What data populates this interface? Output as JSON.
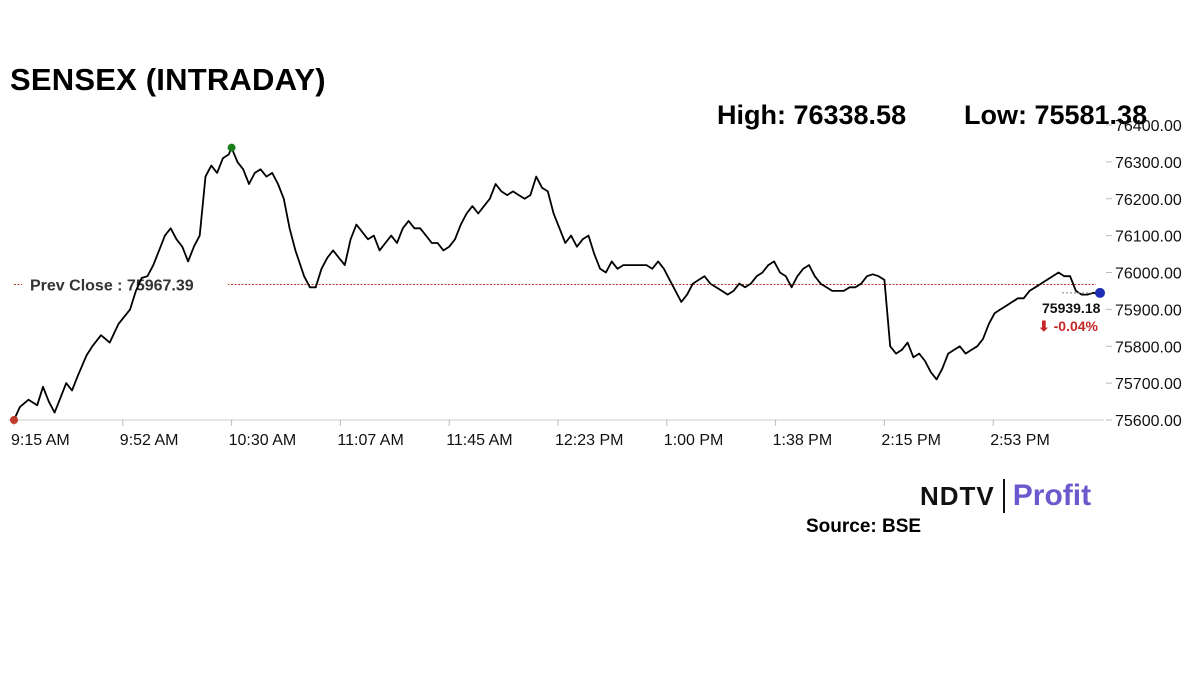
{
  "title": "SENSEX (INTRADAY)",
  "high_label": "High: 76338.58",
  "low_label": "Low: 75581.38",
  "source_label": "Source: BSE",
  "logo": {
    "ndtv": "NDTV",
    "profit": "Profit"
  },
  "colors": {
    "line": "#000000",
    "prev_close_line": "#c0392b",
    "high_marker": "#1b7f1b",
    "low_marker": "#c0392b",
    "last_marker": "#1f2fb5",
    "negative": "#c62828",
    "profit_brand": "#6a5acd"
  },
  "chart_data": {
    "type": "line",
    "title": "SENSEX (INTRADAY)",
    "xlabel": "",
    "ylabel": "",
    "x_tick_labels": [
      "9:15 AM",
      "9:52 AM",
      "10:30 AM",
      "11:07 AM",
      "11:45 AM",
      "12:23 PM",
      "1:00 PM",
      "1:38 PM",
      "2:15 PM",
      "2:53 PM"
    ],
    "y_tick_labels": [
      "76400.00",
      "76300.00",
      "76200.00",
      "76100.00",
      "76000.00",
      "75900.00",
      "75800.00",
      "75700.00",
      "75600.00"
    ],
    "y_ticks": [
      76400,
      76300,
      76200,
      76100,
      76000,
      75900,
      75800,
      75700,
      75600
    ],
    "ylim": [
      75600,
      76400
    ],
    "x_unit": "minutes after 9:15 AM",
    "xlim": [
      0,
      375
    ],
    "grid": false,
    "prev_close": 75967.39,
    "prev_close_label": "Prev Close : 75967.39",
    "last_value": 75939.18,
    "last_value_label": "75939.18",
    "change_label": "⬇ -0.04%",
    "high": {
      "x": 75,
      "y": 76338.58
    },
    "low_marker": {
      "x": 0,
      "y": 75600
    },
    "series": [
      {
        "name": "",
        "points": [
          [
            0,
            75600
          ],
          [
            2,
            75635
          ],
          [
            5,
            75655
          ],
          [
            8,
            75640
          ],
          [
            10,
            75690
          ],
          [
            12,
            75650
          ],
          [
            14,
            75620
          ],
          [
            16,
            75660
          ],
          [
            18,
            75700
          ],
          [
            20,
            75680
          ],
          [
            22,
            75720
          ],
          [
            25,
            75775
          ],
          [
            27,
            75800
          ],
          [
            30,
            75830
          ],
          [
            33,
            75810
          ],
          [
            36,
            75860
          ],
          [
            40,
            75900
          ],
          [
            42,
            75950
          ],
          [
            44,
            75985
          ],
          [
            46,
            75990
          ],
          [
            48,
            76020
          ],
          [
            50,
            76060
          ],
          [
            52,
            76100
          ],
          [
            54,
            76120
          ],
          [
            56,
            76090
          ],
          [
            58,
            76070
          ],
          [
            60,
            76030
          ],
          [
            62,
            76070
          ],
          [
            64,
            76100
          ],
          [
            66,
            76260
          ],
          [
            68,
            76290
          ],
          [
            70,
            76270
          ],
          [
            72,
            76310
          ],
          [
            74,
            76320
          ],
          [
            75,
            76338
          ],
          [
            77,
            76300
          ],
          [
            79,
            76280
          ],
          [
            81,
            76240
          ],
          [
            83,
            76270
          ],
          [
            85,
            76280
          ],
          [
            87,
            76260
          ],
          [
            89,
            76270
          ],
          [
            91,
            76240
          ],
          [
            93,
            76200
          ],
          [
            95,
            76120
          ],
          [
            97,
            76060
          ],
          [
            100,
            75990
          ],
          [
            102,
            75960
          ],
          [
            104,
            75960
          ],
          [
            106,
            76010
          ],
          [
            108,
            76040
          ],
          [
            110,
            76060
          ],
          [
            112,
            76040
          ],
          [
            114,
            76020
          ],
          [
            116,
            76090
          ],
          [
            118,
            76130
          ],
          [
            120,
            76110
          ],
          [
            122,
            76090
          ],
          [
            124,
            76100
          ],
          [
            126,
            76060
          ],
          [
            128,
            76080
          ],
          [
            130,
            76100
          ],
          [
            132,
            76080
          ],
          [
            134,
            76120
          ],
          [
            136,
            76140
          ],
          [
            138,
            76120
          ],
          [
            140,
            76120
          ],
          [
            142,
            76100
          ],
          [
            144,
            76080
          ],
          [
            146,
            76080
          ],
          [
            148,
            76060
          ],
          [
            150,
            76070
          ],
          [
            152,
            76090
          ],
          [
            154,
            76130
          ],
          [
            156,
            76160
          ],
          [
            158,
            76180
          ],
          [
            160,
            76160
          ],
          [
            162,
            76180
          ],
          [
            164,
            76200
          ],
          [
            166,
            76240
          ],
          [
            168,
            76220
          ],
          [
            170,
            76210
          ],
          [
            172,
            76220
          ],
          [
            174,
            76210
          ],
          [
            176,
            76200
          ],
          [
            178,
            76210
          ],
          [
            180,
            76260
          ],
          [
            182,
            76230
          ],
          [
            184,
            76220
          ],
          [
            186,
            76160
          ],
          [
            188,
            76120
          ],
          [
            190,
            76080
          ],
          [
            192,
            76100
          ],
          [
            194,
            76070
          ],
          [
            196,
            76090
          ],
          [
            198,
            76100
          ],
          [
            200,
            76050
          ],
          [
            202,
            76010
          ],
          [
            204,
            76000
          ],
          [
            206,
            76030
          ],
          [
            208,
            76010
          ],
          [
            210,
            76020
          ],
          [
            212,
            76020
          ],
          [
            214,
            76020
          ],
          [
            216,
            76020
          ],
          [
            218,
            76020
          ],
          [
            220,
            76010
          ],
          [
            222,
            76030
          ],
          [
            224,
            76010
          ],
          [
            226,
            75980
          ],
          [
            228,
            75950
          ],
          [
            230,
            75920
          ],
          [
            232,
            75940
          ],
          [
            234,
            75970
          ],
          [
            236,
            75980
          ],
          [
            238,
            75990
          ],
          [
            240,
            75970
          ],
          [
            242,
            75960
          ],
          [
            244,
            75950
          ],
          [
            246,
            75940
          ],
          [
            248,
            75950
          ],
          [
            250,
            75970
          ],
          [
            252,
            75960
          ],
          [
            254,
            75970
          ],
          [
            256,
            75990
          ],
          [
            258,
            76000
          ],
          [
            260,
            76020
          ],
          [
            262,
            76030
          ],
          [
            264,
            76000
          ],
          [
            266,
            75990
          ],
          [
            268,
            75960
          ],
          [
            270,
            75990
          ],
          [
            272,
            76010
          ],
          [
            274,
            76020
          ],
          [
            276,
            75990
          ],
          [
            278,
            75970
          ],
          [
            280,
            75960
          ],
          [
            282,
            75950
          ],
          [
            284,
            75950
          ],
          [
            286,
            75950
          ],
          [
            288,
            75960
          ],
          [
            290,
            75960
          ],
          [
            292,
            75970
          ],
          [
            294,
            75990
          ],
          [
            296,
            75995
          ],
          [
            298,
            75990
          ],
          [
            300,
            75980
          ],
          [
            302,
            75800
          ],
          [
            304,
            75780
          ],
          [
            306,
            75790
          ],
          [
            308,
            75810
          ],
          [
            310,
            75770
          ],
          [
            312,
            75780
          ],
          [
            314,
            75760
          ],
          [
            316,
            75730
          ],
          [
            318,
            75710
          ],
          [
            320,
            75740
          ],
          [
            322,
            75780
          ],
          [
            324,
            75790
          ],
          [
            326,
            75800
          ],
          [
            328,
            75780
          ],
          [
            330,
            75790
          ],
          [
            332,
            75800
          ],
          [
            334,
            75820
          ],
          [
            336,
            75860
          ],
          [
            338,
            75890
          ],
          [
            340,
            75900
          ],
          [
            342,
            75910
          ],
          [
            344,
            75920
          ],
          [
            346,
            75930
          ],
          [
            348,
            75930
          ],
          [
            350,
            75950
          ],
          [
            352,
            75960
          ],
          [
            354,
            75970
          ],
          [
            356,
            75980
          ],
          [
            358,
            75990
          ],
          [
            360,
            76000
          ],
          [
            362,
            75990
          ],
          [
            364,
            75990
          ],
          [
            366,
            75950
          ],
          [
            368,
            75940
          ],
          [
            370,
            75940
          ],
          [
            372,
            75945
          ],
          [
            375,
            75939.18
          ]
        ]
      }
    ]
  }
}
